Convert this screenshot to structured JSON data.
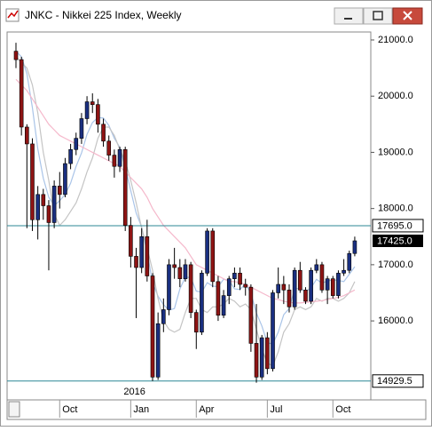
{
  "window_title": "JNKC - Nikkei 225 Index, Weekly",
  "chart_data": {
    "type": "candlestick",
    "ylim": [
      14594,
      21142
    ],
    "yticks": [
      {
        "value": 16000,
        "label": "16000.0"
      },
      {
        "value": 17000,
        "label": "17000.0"
      },
      {
        "value": 18000,
        "label": "18000.0"
      },
      {
        "value": 19000,
        "label": "19000.0"
      },
      {
        "value": 20000,
        "label": "20000.0"
      },
      {
        "value": 21000,
        "label": "21000.0"
      }
    ],
    "xticks": [
      {
        "value": 8,
        "label": "Oct"
      },
      {
        "value": 21,
        "label": "Jan"
      },
      {
        "value": 33,
        "label": "Apr"
      },
      {
        "value": 46,
        "label": "Jul"
      },
      {
        "value": 58,
        "label": "Oct"
      }
    ],
    "year_label": {
      "value": 21,
      "label": "2016"
    },
    "up_color": "#1a2f80",
    "down_color": "#8e1414",
    "open": [
      20800,
      20650,
      19450,
      19150,
      17800,
      18250,
      18050,
      17750,
      18400,
      18250,
      18800,
      19050,
      19250,
      19600,
      19900,
      19850,
      19500,
      19200,
      18950,
      18750,
      19050,
      17700,
      17150,
      16950,
      17500,
      16800,
      15000,
      15950,
      16200,
      17000,
      16950,
      16750,
      17000,
      16150,
      15800,
      16850,
      17600,
      16700,
      16100,
      16450,
      16750,
      16850,
      16650,
      16600,
      15600,
      15000,
      15700,
      15150,
      16500,
      16650,
      16550,
      16250,
      16900,
      16550,
      16350,
      16900,
      17000,
      16550,
      16750,
      16450,
      16850,
      16900,
      17200
    ],
    "high": [
      20950,
      20700,
      19500,
      19250,
      18400,
      18350,
      18150,
      18500,
      18650,
      18900,
      19150,
      19350,
      19700,
      20000,
      20050,
      19950,
      19600,
      19300,
      19050,
      19100,
      19100,
      17850,
      17300,
      17650,
      17800,
      16850,
      16150,
      16400,
      17100,
      17300,
      17100,
      17100,
      17050,
      16200,
      16900,
      17650,
      17650,
      16800,
      16550,
      16800,
      16950,
      16950,
      16750,
      16650,
      16300,
      15750,
      15800,
      16550,
      16950,
      16800,
      16650,
      16950,
      17050,
      16600,
      16950,
      17100,
      17050,
      16800,
      16800,
      16900,
      17100,
      17250,
      17500
    ],
    "low": [
      20500,
      19300,
      17650,
      17600,
      17450,
      17800,
      16900,
      17650,
      18000,
      18200,
      18700,
      18950,
      19150,
      19500,
      19700,
      19350,
      19100,
      18850,
      18550,
      18650,
      17600,
      16950,
      16050,
      16850,
      16700,
      14930,
      14950,
      15800,
      16100,
      16750,
      16600,
      16700,
      16050,
      15500,
      15750,
      16800,
      16600,
      16000,
      16050,
      16300,
      16600,
      16550,
      16450,
      15450,
      14900,
      14950,
      15050,
      15100,
      16400,
      16300,
      16150,
      16200,
      16500,
      16300,
      16300,
      16850,
      16500,
      16300,
      16400,
      16400,
      16800,
      16850,
      17150
    ],
    "close": [
      20650,
      19450,
      19150,
      17800,
      18250,
      18050,
      17750,
      18400,
      18250,
      18800,
      19050,
      19250,
      19600,
      19900,
      19850,
      19500,
      19200,
      18950,
      18750,
      19050,
      17700,
      17150,
      16950,
      17500,
      16800,
      15000,
      15950,
      16200,
      17000,
      16950,
      16750,
      17000,
      16150,
      15800,
      16850,
      17600,
      16700,
      16100,
      16450,
      16750,
      16850,
      16650,
      16600,
      15600,
      15000,
      15700,
      15150,
      16500,
      16650,
      16550,
      16250,
      16900,
      16550,
      16350,
      16900,
      17000,
      16550,
      16750,
      16450,
      16850,
      16900,
      17200,
      17425
    ],
    "overlays": [
      {
        "color": "#a9c4e8",
        "values": [
          20800,
          20700,
          20400,
          19800,
          19060,
          18540,
          18200,
          18050,
          18140,
          18250,
          18450,
          18750,
          18990,
          19320,
          19530,
          19620,
          19610,
          19480,
          19250,
          19090,
          18730,
          18320,
          17920,
          17670,
          17220,
          16680,
          16440,
          16290,
          16190,
          16220,
          16570,
          16780,
          16770,
          16530,
          16510,
          16680,
          16620,
          16610,
          16740,
          16720,
          16570,
          16560,
          16660,
          16490,
          16140,
          15910,
          15610,
          15590,
          15800,
          16110,
          16220,
          16570,
          16580,
          16520,
          16590,
          16740,
          16670,
          16710,
          16730,
          16720,
          16700,
          16830,
          16965
        ]
      },
      {
        "color": "#c4c4c4",
        "values": [
          20700,
          20600,
          20500,
          20200,
          19700,
          19000,
          18500,
          17900,
          17700,
          17800,
          17950,
          18100,
          18350,
          18650,
          18900,
          19250,
          19450,
          19450,
          19300,
          19050,
          18850,
          18500,
          18100,
          17650,
          17300,
          16900,
          16400,
          16000,
          15850,
          15800,
          15850,
          16150,
          16400,
          16400,
          16200,
          16150,
          16250,
          16250,
          16300,
          16400,
          16350,
          16250,
          16300,
          16200,
          15850,
          15500,
          15250,
          15200,
          15450,
          15800,
          15950,
          16200,
          16250,
          16200,
          16250,
          16400,
          16350,
          16400,
          16400,
          16350,
          16400,
          16500,
          16700
        ]
      },
      {
        "color": "#f5b8cb",
        "values": [
          20300,
          20200,
          20100,
          19950,
          19800,
          19650,
          19500,
          19400,
          19300,
          19250,
          19200,
          19150,
          19100,
          19050,
          19000,
          18950,
          18900,
          18850,
          18800,
          18750,
          18650,
          18550,
          18450,
          18350,
          18200,
          18000,
          17850,
          17700,
          17600,
          17500,
          17400,
          17300,
          17150,
          17000,
          16950,
          16900,
          16850,
          16800,
          16750,
          16700,
          16700,
          16680,
          16650,
          16600,
          16550,
          16500,
          16450,
          16400,
          16380,
          16350,
          16330,
          16320,
          16320,
          16330,
          16340,
          16350,
          16360,
          16380,
          16400,
          16420,
          16450,
          16500,
          16550
        ]
      }
    ],
    "hline_color": "#2b8796",
    "hlines": [
      {
        "value": 17695,
        "label": "17695.0"
      },
      {
        "value": 14929.5,
        "label": "14929.5"
      }
    ],
    "last_price": {
      "value": 17425,
      "label": "17425.0"
    }
  }
}
